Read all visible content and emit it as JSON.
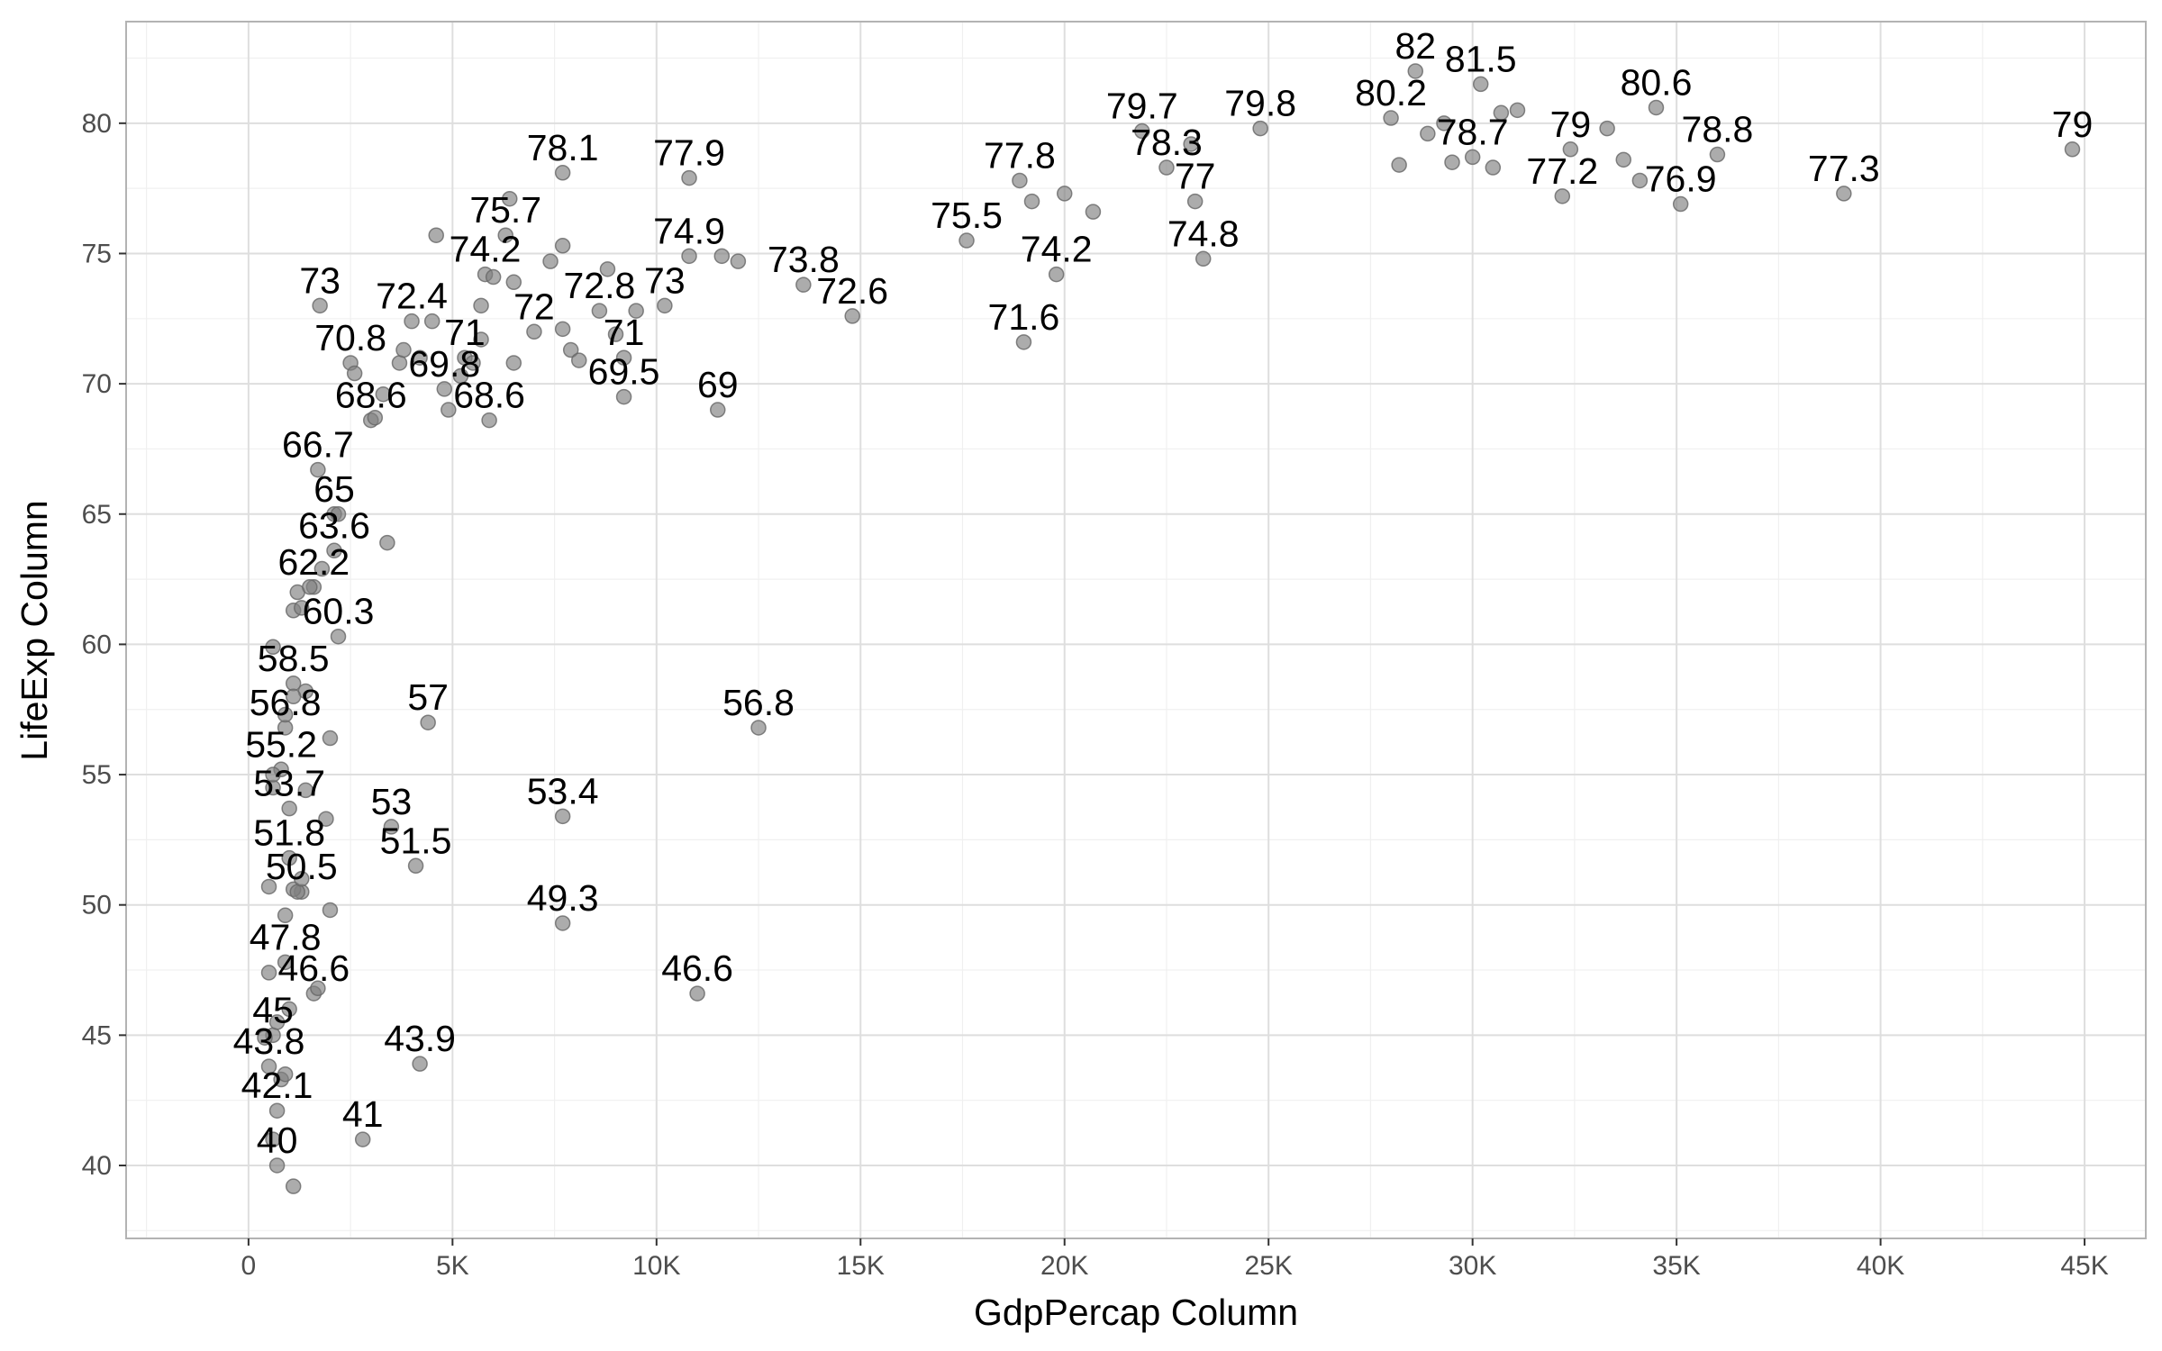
{
  "chart_data": {
    "type": "scatter",
    "title": "",
    "xlabel": "GdpPercap Column",
    "ylabel": "LifeExp Column",
    "xlim": [
      -3000,
      46500
    ],
    "ylim": [
      37.2,
      83.9
    ],
    "x_ticks": [
      0,
      5000,
      10000,
      15000,
      20000,
      25000,
      30000,
      35000,
      40000,
      45000
    ],
    "x_tick_labels": [
      "0",
      "5K",
      "10K",
      "15K",
      "20K",
      "25K",
      "30K",
      "35K",
      "40K",
      "45K"
    ],
    "y_ticks": [
      40,
      45,
      50,
      55,
      60,
      65,
      70,
      75,
      80
    ],
    "y_tick_labels": [
      "40",
      "45",
      "50",
      "55",
      "60",
      "65",
      "70",
      "75",
      "80"
    ],
    "grid": true,
    "legend": "none",
    "point_color": "#7f7f7f",
    "labeled_points": [
      {
        "x": 1750,
        "y": 73.0,
        "label": "73"
      },
      {
        "x": 2500,
        "y": 70.8,
        "label": "70.8"
      },
      {
        "x": 3000,
        "y": 68.6,
        "label": "68.6"
      },
      {
        "x": 4000,
        "y": 72.4,
        "label": "72.4"
      },
      {
        "x": 4800,
        "y": 69.8,
        "label": "69.8"
      },
      {
        "x": 5300,
        "y": 71.0,
        "label": "71"
      },
      {
        "x": 5900,
        "y": 68.6,
        "label": "68.6"
      },
      {
        "x": 5800,
        "y": 74.2,
        "label": "74.2"
      },
      {
        "x": 6300,
        "y": 75.7,
        "label": "75.7"
      },
      {
        "x": 7000,
        "y": 72.0,
        "label": "72"
      },
      {
        "x": 7700,
        "y": 78.1,
        "label": "78.1"
      },
      {
        "x": 8600,
        "y": 72.8,
        "label": "72.8"
      },
      {
        "x": 9200,
        "y": 71.0,
        "label": "71"
      },
      {
        "x": 9200,
        "y": 69.5,
        "label": "69.5"
      },
      {
        "x": 10200,
        "y": 73.0,
        "label": "73"
      },
      {
        "x": 10800,
        "y": 74.9,
        "label": "74.9"
      },
      {
        "x": 10800,
        "y": 77.9,
        "label": "77.9"
      },
      {
        "x": 11500,
        "y": 69.0,
        "label": "69"
      },
      {
        "x": 13600,
        "y": 73.8,
        "label": "73.8"
      },
      {
        "x": 14800,
        "y": 72.6,
        "label": "72.6"
      },
      {
        "x": 17600,
        "y": 75.5,
        "label": "75.5"
      },
      {
        "x": 18900,
        "y": 77.8,
        "label": "77.8"
      },
      {
        "x": 19000,
        "y": 71.6,
        "label": "71.6"
      },
      {
        "x": 19800,
        "y": 74.2,
        "label": "74.2"
      },
      {
        "x": 21900,
        "y": 79.7,
        "label": "79.7"
      },
      {
        "x": 22500,
        "y": 78.3,
        "label": "78.3"
      },
      {
        "x": 23200,
        "y": 77.0,
        "label": "77"
      },
      {
        "x": 23400,
        "y": 74.8,
        "label": "74.8"
      },
      {
        "x": 24800,
        "y": 79.8,
        "label": "79.8"
      },
      {
        "x": 28000,
        "y": 80.2,
        "label": "80.2"
      },
      {
        "x": 28600,
        "y": 82.0,
        "label": "82"
      },
      {
        "x": 30000,
        "y": 78.7,
        "label": "78.7"
      },
      {
        "x": 30200,
        "y": 81.5,
        "label": "81.5"
      },
      {
        "x": 32200,
        "y": 77.2,
        "label": "77.2"
      },
      {
        "x": 32400,
        "y": 79.0,
        "label": "79"
      },
      {
        "x": 34500,
        "y": 80.6,
        "label": "80.6"
      },
      {
        "x": 35100,
        "y": 76.9,
        "label": "76.9"
      },
      {
        "x": 36000,
        "y": 78.8,
        "label": "78.8"
      },
      {
        "x": 39100,
        "y": 77.3,
        "label": "77.3"
      },
      {
        "x": 44700,
        "y": 79.0,
        "label": "79"
      },
      {
        "x": 1700,
        "y": 66.7,
        "label": "66.7"
      },
      {
        "x": 2100,
        "y": 65.0,
        "label": "65"
      },
      {
        "x": 2100,
        "y": 63.6,
        "label": "63.6"
      },
      {
        "x": 1600,
        "y": 62.2,
        "label": "62.2"
      },
      {
        "x": 2200,
        "y": 60.3,
        "label": "60.3"
      },
      {
        "x": 1100,
        "y": 58.5,
        "label": "58.5"
      },
      {
        "x": 900,
        "y": 56.8,
        "label": "56.8"
      },
      {
        "x": 4400,
        "y": 57.0,
        "label": "57"
      },
      {
        "x": 12500,
        "y": 56.8,
        "label": "56.8"
      },
      {
        "x": 800,
        "y": 55.2,
        "label": "55.2"
      },
      {
        "x": 1000,
        "y": 53.7,
        "label": "53.7"
      },
      {
        "x": 3500,
        "y": 53.0,
        "label": "53"
      },
      {
        "x": 7700,
        "y": 53.4,
        "label": "53.4"
      },
      {
        "x": 1000,
        "y": 51.8,
        "label": "51.8"
      },
      {
        "x": 4100,
        "y": 51.5,
        "label": "51.5"
      },
      {
        "x": 1300,
        "y": 50.5,
        "label": "50.5"
      },
      {
        "x": 7700,
        "y": 49.3,
        "label": "49.3"
      },
      {
        "x": 900,
        "y": 47.8,
        "label": "47.8"
      },
      {
        "x": 1600,
        "y": 46.6,
        "label": "46.6"
      },
      {
        "x": 11000,
        "y": 46.6,
        "label": "46.6"
      },
      {
        "x": 600,
        "y": 45.0,
        "label": "45"
      },
      {
        "x": 500,
        "y": 43.8,
        "label": "43.8"
      },
      {
        "x": 4200,
        "y": 43.9,
        "label": "43.9"
      },
      {
        "x": 700,
        "y": 42.1,
        "label": "42.1"
      },
      {
        "x": 2800,
        "y": 41.0,
        "label": "41"
      },
      {
        "x": 700,
        "y": 40.0,
        "label": "40"
      }
    ],
    "unlabeled_points": [
      {
        "x": 1100,
        "y": 39.2
      },
      {
        "x": 600,
        "y": 41.0
      },
      {
        "x": 800,
        "y": 43.3
      },
      {
        "x": 900,
        "y": 43.5
      },
      {
        "x": 400,
        "y": 44.9
      },
      {
        "x": 700,
        "y": 45.5
      },
      {
        "x": 1000,
        "y": 46.0
      },
      {
        "x": 1700,
        "y": 46.8
      },
      {
        "x": 500,
        "y": 47.4
      },
      {
        "x": 900,
        "y": 49.6
      },
      {
        "x": 2000,
        "y": 49.8
      },
      {
        "x": 1100,
        "y": 50.6
      },
      {
        "x": 1200,
        "y": 50.5
      },
      {
        "x": 500,
        "y": 50.7
      },
      {
        "x": 1300,
        "y": 51.0
      },
      {
        "x": 1900,
        "y": 53.3
      },
      {
        "x": 1400,
        "y": 54.4
      },
      {
        "x": 600,
        "y": 54.5
      },
      {
        "x": 600,
        "y": 55.0
      },
      {
        "x": 2000,
        "y": 56.4
      },
      {
        "x": 900,
        "y": 57.3
      },
      {
        "x": 1400,
        "y": 58.2
      },
      {
        "x": 1100,
        "y": 58.0
      },
      {
        "x": 600,
        "y": 59.9
      },
      {
        "x": 1100,
        "y": 61.3
      },
      {
        "x": 1300,
        "y": 61.4
      },
      {
        "x": 1200,
        "y": 62.0
      },
      {
        "x": 1500,
        "y": 62.2
      },
      {
        "x": 1800,
        "y": 62.9
      },
      {
        "x": 3400,
        "y": 63.9
      },
      {
        "x": 2200,
        "y": 65.0
      },
      {
        "x": 2600,
        "y": 70.4
      },
      {
        "x": 3100,
        "y": 68.7
      },
      {
        "x": 3300,
        "y": 69.6
      },
      {
        "x": 3700,
        "y": 70.8
      },
      {
        "x": 3800,
        "y": 71.3
      },
      {
        "x": 4200,
        "y": 71.0
      },
      {
        "x": 4500,
        "y": 72.4
      },
      {
        "x": 4900,
        "y": 69.0
      },
      {
        "x": 5200,
        "y": 70.3
      },
      {
        "x": 5500,
        "y": 70.8
      },
      {
        "x": 5700,
        "y": 71.7
      },
      {
        "x": 5700,
        "y": 73.0
      },
      {
        "x": 6000,
        "y": 74.1
      },
      {
        "x": 6400,
        "y": 77.1
      },
      {
        "x": 6500,
        "y": 73.9
      },
      {
        "x": 6500,
        "y": 70.8
      },
      {
        "x": 7400,
        "y": 74.7
      },
      {
        "x": 7700,
        "y": 75.3
      },
      {
        "x": 7700,
        "y": 72.1
      },
      {
        "x": 7900,
        "y": 71.3
      },
      {
        "x": 8100,
        "y": 70.9
      },
      {
        "x": 8800,
        "y": 74.4
      },
      {
        "x": 9000,
        "y": 71.9
      },
      {
        "x": 9500,
        "y": 72.8
      },
      {
        "x": 11600,
        "y": 74.9
      },
      {
        "x": 12000,
        "y": 74.7
      },
      {
        "x": 4600,
        "y": 75.7
      },
      {
        "x": 19200,
        "y": 77.0
      },
      {
        "x": 20000,
        "y": 77.3
      },
      {
        "x": 20700,
        "y": 76.6
      },
      {
        "x": 23100,
        "y": 79.2
      },
      {
        "x": 28200,
        "y": 78.4
      },
      {
        "x": 28900,
        "y": 79.6
      },
      {
        "x": 29300,
        "y": 80.0
      },
      {
        "x": 29500,
        "y": 78.5
      },
      {
        "x": 30500,
        "y": 78.3
      },
      {
        "x": 30700,
        "y": 80.4
      },
      {
        "x": 31100,
        "y": 80.5
      },
      {
        "x": 33300,
        "y": 79.8
      },
      {
        "x": 33700,
        "y": 78.6
      },
      {
        "x": 34100,
        "y": 77.8
      }
    ]
  }
}
